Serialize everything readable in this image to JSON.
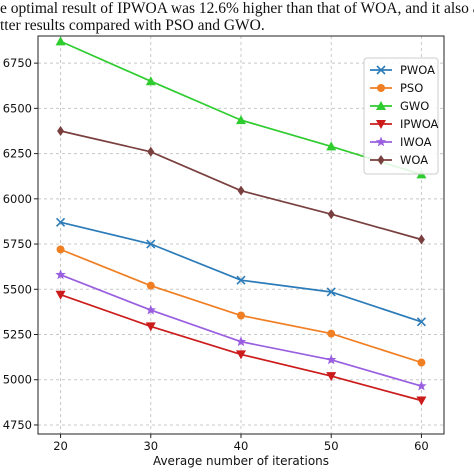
{
  "caption": {
    "line1": "e optimal result of IPWOA was 12.6% higher than that of WOA, and it also ach",
    "line2": "tter results compared with PSO and GWO."
  },
  "chart_data": {
    "type": "line",
    "x": [
      20,
      30,
      40,
      50,
      60
    ],
    "xlabel": "Average number of iterations",
    "ylabel": "",
    "xlim": [
      17.5,
      62.5
    ],
    "ylim": [
      4700,
      6900
    ],
    "xticks": [
      20,
      30,
      40,
      50,
      60
    ],
    "xtick_labels": [
      "20",
      "30",
      "40",
      "50",
      "60"
    ],
    "yticks": [
      4750,
      5000,
      5250,
      5500,
      5750,
      6000,
      6250,
      6500,
      6750
    ],
    "ytick_labels": [
      "4750",
      "5000",
      "5250",
      "5500",
      "5750",
      "6000",
      "6250",
      "6500",
      "6750"
    ],
    "grid": true,
    "legend_position": "top-right",
    "series": [
      {
        "name": "PWOA",
        "color": "#2b7bb9",
        "marker": "x",
        "values": [
          5870,
          5750,
          5550,
          5485,
          5320
        ]
      },
      {
        "name": "PSO",
        "color": "#f07f23",
        "marker": "circle",
        "values": [
          5720,
          5520,
          5355,
          5255,
          5095
        ]
      },
      {
        "name": "GWO",
        "color": "#2fcc2f",
        "marker": "triangle-up",
        "values": [
          6870,
          6650,
          6435,
          6290,
          6135
        ]
      },
      {
        "name": "IPWOA",
        "color": "#cc1b1b",
        "marker": "triangle-down",
        "values": [
          5470,
          5295,
          5140,
          5020,
          4885
        ]
      },
      {
        "name": "IWOA",
        "color": "#9a5fe0",
        "marker": "star",
        "values": [
          5580,
          5385,
          5210,
          5110,
          4965
        ]
      },
      {
        "name": "WOA",
        "color": "#7a3f3f",
        "marker": "diamond",
        "values": [
          6375,
          6260,
          6045,
          5915,
          5775
        ]
      }
    ]
  }
}
